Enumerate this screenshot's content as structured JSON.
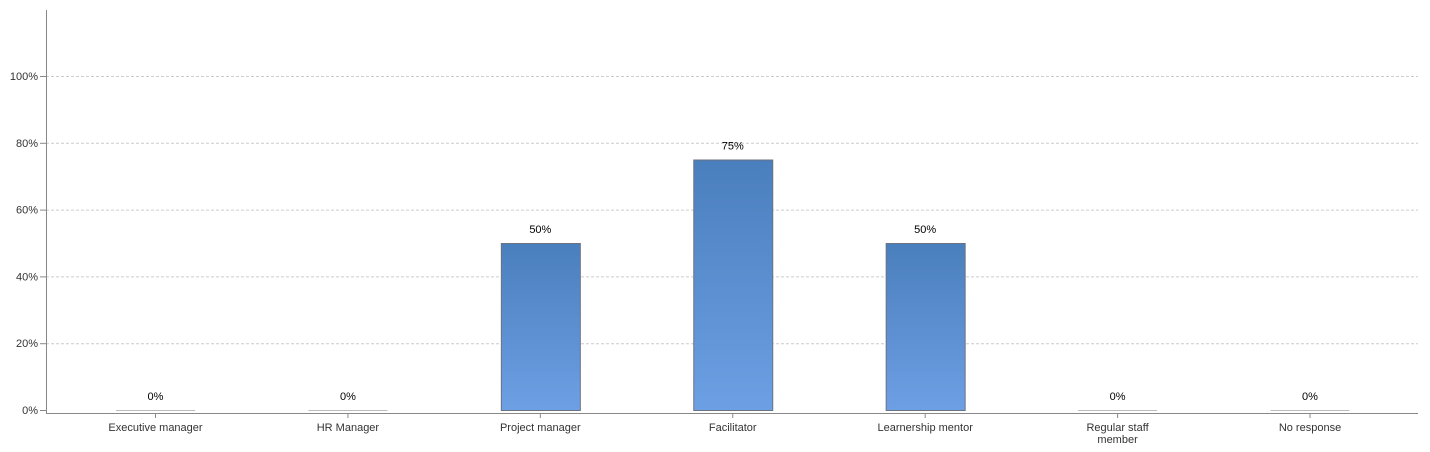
{
  "chart_data": {
    "type": "bar",
    "title": "",
    "xlabel": "",
    "ylabel": "",
    "ylim": [
      0,
      100
    ],
    "y_ticks": [
      0,
      20,
      40,
      60,
      80,
      100
    ],
    "y_tick_labels": [
      "0%",
      "20%",
      "40%",
      "60%",
      "80%",
      "100%"
    ],
    "grid": true,
    "categories": [
      [
        "Executive manager"
      ],
      [
        "HR Manager"
      ],
      [
        "Project manager"
      ],
      [
        "Facilitator"
      ],
      [
        "Learnership mentor"
      ],
      [
        "Regular staff",
        "member"
      ],
      [
        "No response"
      ]
    ],
    "values": [
      0,
      0,
      50,
      75,
      50,
      0,
      0
    ],
    "data_labels": [
      "0%",
      "0%",
      "50%",
      "75%",
      "50%",
      "0%",
      "0%"
    ],
    "colors": {
      "bar_top": "#4a7fbd",
      "bar_bottom": "#6d9fe4",
      "bar_stroke": "#6b7280",
      "grid": "#cccccc",
      "axis": "#888888"
    }
  }
}
